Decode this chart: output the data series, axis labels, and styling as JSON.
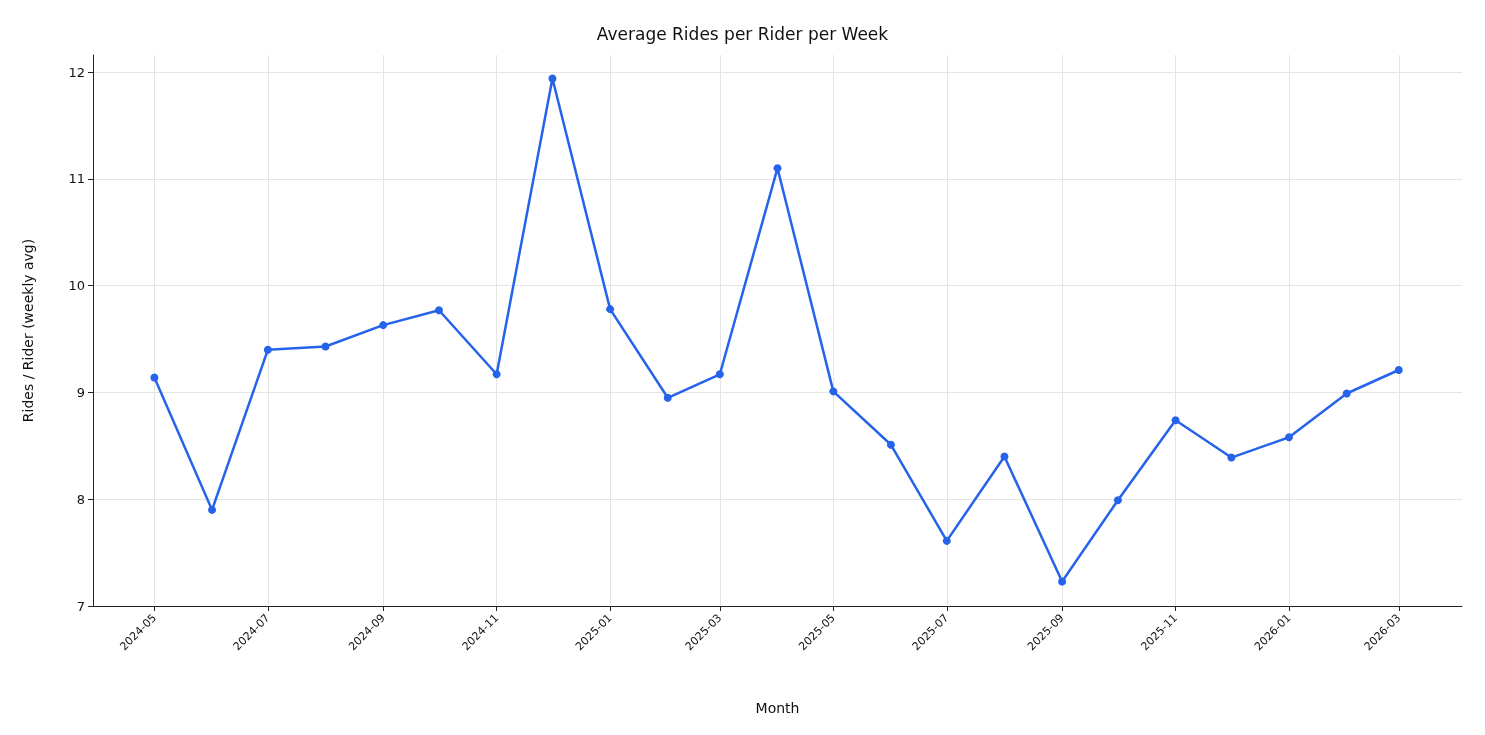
{
  "chart_data": {
    "type": "line",
    "title": "Average Rides per Rider per Week",
    "xlabel": "Month",
    "ylabel": "Rides / Rider (weekly avg)",
    "x": [
      "2024-05",
      "2024-06",
      "2024-07",
      "2024-08",
      "2024-09",
      "2024-10",
      "2024-11",
      "2024-12",
      "2025-01",
      "2025-02",
      "2025-03",
      "2025-04",
      "2025-05",
      "2025-06",
      "2025-07",
      "2025-08",
      "2025-09",
      "2025-10",
      "2025-11",
      "2025-12",
      "2026-01",
      "2026-02",
      "2026-03"
    ],
    "series": [
      {
        "color": "#2563eb",
        "values": [
          9.14,
          7.9,
          9.4,
          9.43,
          9.63,
          9.77,
          9.17,
          11.94,
          9.78,
          8.95,
          9.17,
          11.1,
          9.01,
          8.51,
          7.61,
          8.4,
          7.23,
          7.99,
          8.74,
          8.39,
          8.58,
          8.99,
          9.21
        ]
      }
    ],
    "xlim": [
      "2024-03-29",
      "2026-04-04"
    ],
    "xticks": [
      "2024-05",
      "2024-07",
      "2024-09",
      "2024-11",
      "2025-01",
      "2025-03",
      "2025-05",
      "2025-07",
      "2025-09",
      "2025-11",
      "2026-01",
      "2026-03"
    ],
    "ylim": [
      7,
      12.16
    ],
    "yticks": [
      7,
      8,
      9,
      10,
      11,
      12
    ],
    "grid": true,
    "marker": "circle",
    "line_style": "solid"
  }
}
